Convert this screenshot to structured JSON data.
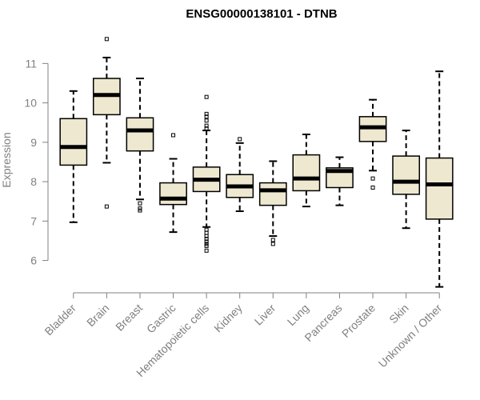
{
  "chart_data": {
    "type": "boxplot",
    "title": "ENSG00000138101 - DTNB",
    "xlabel": "",
    "ylabel": "Expression",
    "ylim": [
      5.2,
      11.9
    ],
    "yticks": [
      6,
      7,
      8,
      9,
      10,
      11
    ],
    "grid": false,
    "colors": {
      "box_fill": "#EDE8CF",
      "stroke": "#000000",
      "axis": "#808080"
    },
    "categories": [
      "Bladder",
      "Brain",
      "Breast",
      "Gastric",
      "Hematopoietic cells",
      "Kidney",
      "Liver",
      "Lung",
      "Pancreas",
      "Prostate",
      "Skin",
      "Unknown / Other"
    ],
    "boxes": [
      {
        "q1": 8.42,
        "median": 8.88,
        "q3": 9.6,
        "whisker_low": 6.97,
        "whisker_high": 10.3,
        "outliers": []
      },
      {
        "q1": 9.7,
        "median": 10.2,
        "q3": 10.62,
        "whisker_low": 8.48,
        "whisker_high": 11.15,
        "outliers": [
          11.62,
          7.37
        ]
      },
      {
        "q1": 8.78,
        "median": 9.3,
        "q3": 9.62,
        "whisker_low": 7.55,
        "whisker_high": 10.62,
        "outliers": [
          7.45,
          7.32,
          7.27
        ]
      },
      {
        "q1": 7.42,
        "median": 7.57,
        "q3": 7.97,
        "whisker_low": 6.72,
        "whisker_high": 8.58,
        "outliers": [
          9.18
        ]
      },
      {
        "q1": 7.75,
        "median": 8.05,
        "q3": 8.37,
        "whisker_low": 6.85,
        "whisker_high": 9.3,
        "outliers": [
          10.15,
          9.72,
          9.65,
          9.55,
          9.42,
          9.35,
          6.78,
          6.7,
          6.62,
          6.55,
          6.48,
          6.42,
          6.37,
          6.25
        ]
      },
      {
        "q1": 7.6,
        "median": 7.88,
        "q3": 8.18,
        "whisker_low": 7.25,
        "whisker_high": 8.98,
        "outliers": [
          9.08
        ]
      },
      {
        "q1": 7.4,
        "median": 7.78,
        "q3": 7.97,
        "whisker_low": 6.62,
        "whisker_high": 8.52,
        "outliers": [
          6.52,
          6.42
        ]
      },
      {
        "q1": 7.77,
        "median": 8.08,
        "q3": 8.68,
        "whisker_low": 7.37,
        "whisker_high": 9.2,
        "outliers": []
      },
      {
        "q1": 7.85,
        "median": 8.27,
        "q3": 8.35,
        "whisker_low": 7.4,
        "whisker_high": 8.62,
        "outliers": []
      },
      {
        "q1": 9.02,
        "median": 9.38,
        "q3": 9.65,
        "whisker_low": 8.28,
        "whisker_high": 10.08,
        "outliers": [
          8.08,
          7.85
        ]
      },
      {
        "q1": 7.68,
        "median": 8.0,
        "q3": 8.65,
        "whisker_low": 6.82,
        "whisker_high": 9.3,
        "outliers": []
      },
      {
        "q1": 7.05,
        "median": 7.93,
        "q3": 8.6,
        "whisker_low": 5.33,
        "whisker_high": 10.8,
        "outliers": []
      }
    ]
  }
}
